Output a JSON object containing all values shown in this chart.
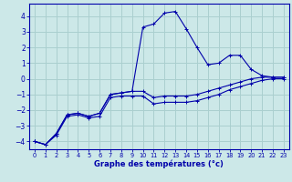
{
  "xlabel": "Graphe des températures (°c)",
  "bg_color": "#cce8e8",
  "grid_color": "#aacfcf",
  "line_color": "#0000aa",
  "xlim": [
    -0.5,
    23.5
  ],
  "ylim": [
    -4.5,
    4.8
  ],
  "yticks": [
    -4,
    -3,
    -2,
    -1,
    0,
    1,
    2,
    3,
    4
  ],
  "xticks": [
    0,
    1,
    2,
    3,
    4,
    5,
    6,
    7,
    8,
    9,
    10,
    11,
    12,
    13,
    14,
    15,
    16,
    17,
    18,
    19,
    20,
    21,
    22,
    23
  ],
  "series1_x": [
    0,
    1,
    2,
    3,
    4,
    5,
    6,
    7,
    8,
    9,
    10,
    11,
    12,
    13,
    14,
    15,
    16,
    17,
    18,
    19,
    20,
    21,
    22,
    23
  ],
  "series1_y": [
    -4.0,
    -4.2,
    -3.5,
    -2.3,
    -2.2,
    -2.4,
    -2.2,
    -1.0,
    -0.9,
    -0.8,
    -0.8,
    -1.2,
    -1.1,
    -1.1,
    -1.1,
    -1.0,
    -0.8,
    -0.6,
    -0.4,
    -0.2,
    0.0,
    0.1,
    0.1,
    0.1
  ],
  "series2_x": [
    0,
    1,
    2,
    3,
    4,
    5,
    6,
    7,
    8,
    9,
    10,
    11,
    12,
    13,
    14,
    15,
    16,
    17,
    18,
    19,
    20,
    21,
    22,
    23
  ],
  "series2_y": [
    -4.0,
    -4.2,
    -3.6,
    -2.4,
    -2.3,
    -2.5,
    -2.4,
    -1.2,
    -1.1,
    -1.1,
    -1.1,
    -1.6,
    -1.5,
    -1.5,
    -1.5,
    -1.4,
    -1.2,
    -1.0,
    -0.7,
    -0.5,
    -0.3,
    -0.1,
    0.0,
    0.0
  ],
  "series3_x": [
    0,
    1,
    2,
    3,
    4,
    5,
    6,
    7,
    8,
    9,
    10,
    11,
    12,
    13,
    14,
    15,
    16,
    17,
    18,
    19,
    20,
    21,
    22,
    23
  ],
  "series3_y": [
    -4.0,
    -4.2,
    -3.5,
    -2.3,
    -2.2,
    -2.4,
    -2.2,
    -1.0,
    -0.9,
    -0.8,
    3.3,
    3.5,
    4.2,
    4.3,
    3.2,
    2.0,
    0.9,
    1.0,
    1.5,
    1.5,
    0.6,
    0.2,
    0.1,
    0.1
  ],
  "marker": "+",
  "lw": 0.8,
  "ms": 3.5
}
